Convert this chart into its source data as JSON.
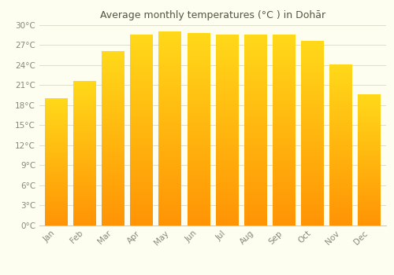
{
  "title": "Average monthly temperatures (°C ) in Dohār",
  "months": [
    "Jan",
    "Feb",
    "Mar",
    "Apr",
    "May",
    "Jun",
    "Jul",
    "Aug",
    "Sep",
    "Oct",
    "Nov",
    "Dec"
  ],
  "temperatures": [
    19.0,
    21.5,
    26.0,
    28.5,
    29.0,
    28.7,
    28.5,
    28.5,
    28.5,
    27.5,
    24.0,
    19.5
  ],
  "bar_color": "#FFA500",
  "bar_color_bottom": "#FFD000",
  "bar_color_top": "#FF9500",
  "ylim": [
    0,
    30
  ],
  "yticks": [
    0,
    3,
    6,
    9,
    12,
    15,
    18,
    21,
    24,
    27,
    30
  ],
  "ytick_labels": [
    "0°C",
    "3°C",
    "6°C",
    "9°C",
    "12°C",
    "15°C",
    "18°C",
    "21°C",
    "24°C",
    "27°C",
    "30°C"
  ],
  "background_color": "#FEFEF0",
  "grid_color": "#DDDDCC",
  "title_fontsize": 9,
  "tick_fontsize": 7.5,
  "bar_width": 0.8
}
